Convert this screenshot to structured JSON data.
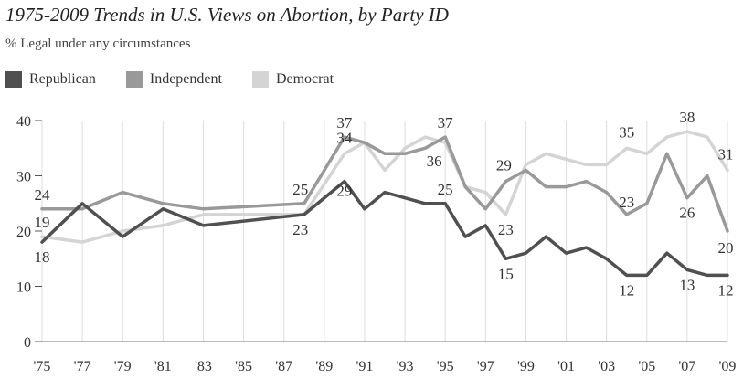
{
  "chart_data": {
    "type": "line",
    "title": "1975-2009 Trends in U.S. Views on Abortion, by Party ID",
    "subtitle": "% Legal under any circumstances",
    "ylim": [
      0,
      40
    ],
    "yticks": [
      0,
      10,
      20,
      30,
      40
    ],
    "grid": "vertical lines at each x tick",
    "legend_position": "top-left",
    "xticks": [
      1975,
      1977,
      1979,
      1981,
      1983,
      1985,
      1987,
      1989,
      1991,
      1993,
      1995,
      1997,
      1999,
      2001,
      2003,
      2005,
      2007,
      2009
    ],
    "xtick_labels": [
      "'75",
      "'77",
      "'79",
      "'81",
      "'83",
      "'85",
      "'87",
      "'89",
      "'91",
      "'93",
      "'95",
      "'97",
      "'99",
      "'01",
      "'03",
      "'05",
      "'07",
      "'09"
    ],
    "series": [
      {
        "name": "Republican",
        "color": "#505050",
        "points": [
          [
            1975,
            18
          ],
          [
            1977,
            25
          ],
          [
            1979,
            19
          ],
          [
            1981,
            24
          ],
          [
            1983,
            21
          ],
          [
            1988,
            23
          ],
          [
            1990,
            29
          ],
          [
            1991,
            24
          ],
          [
            1992,
            27
          ],
          [
            1994,
            25
          ],
          [
            1995,
            25
          ],
          [
            1996,
            19
          ],
          [
            1997,
            21
          ],
          [
            1998,
            15
          ],
          [
            1999,
            16
          ],
          [
            2000,
            19
          ],
          [
            2001,
            16
          ],
          [
            2002,
            17
          ],
          [
            2003,
            15
          ],
          [
            2004,
            12
          ],
          [
            2005,
            12
          ],
          [
            2006,
            16
          ],
          [
            2007,
            13
          ],
          [
            2008,
            12
          ],
          [
            2009,
            12
          ]
        ],
        "labels": [
          {
            "x": 1975,
            "y": 18,
            "text": "18"
          },
          {
            "x": 1990,
            "y": 29,
            "text": "29"
          },
          {
            "x": 1995,
            "y": 25,
            "text": "25"
          },
          {
            "x": 1998,
            "y": 15,
            "text": "15"
          },
          {
            "x": 2004,
            "y": 12,
            "text": "12"
          },
          {
            "x": 2007,
            "y": 13,
            "text": "13"
          },
          {
            "x": 2009,
            "y": 12,
            "text": "12"
          }
        ]
      },
      {
        "name": "Independent",
        "color": "#999999",
        "points": [
          [
            1975,
            24
          ],
          [
            1977,
            24
          ],
          [
            1979,
            27
          ],
          [
            1981,
            25
          ],
          [
            1983,
            24
          ],
          [
            1988,
            25
          ],
          [
            1990,
            37
          ],
          [
            1991,
            36
          ],
          [
            1992,
            34
          ],
          [
            1993,
            34
          ],
          [
            1994,
            35
          ],
          [
            1995,
            37
          ],
          [
            1996,
            28
          ],
          [
            1997,
            24
          ],
          [
            1998,
            29
          ],
          [
            1999,
            31
          ],
          [
            2000,
            28
          ],
          [
            2001,
            28
          ],
          [
            2002,
            29
          ],
          [
            2003,
            27
          ],
          [
            2004,
            23
          ],
          [
            2005,
            25
          ],
          [
            2006,
            34
          ],
          [
            2007,
            26
          ],
          [
            2008,
            30
          ],
          [
            2009,
            20
          ]
        ],
        "labels": [
          {
            "x": 1975,
            "y": 24,
            "text": "24"
          },
          {
            "x": 1988,
            "y": 25,
            "text": "25"
          },
          {
            "x": 1990,
            "y": 37,
            "text": "37"
          },
          {
            "x": 1995,
            "y": 37,
            "text": "37"
          },
          {
            "x": 1998,
            "y": 29,
            "text": "29"
          },
          {
            "x": 2004,
            "y": 23,
            "text": "23"
          },
          {
            "x": 2007,
            "y": 26,
            "text": "26"
          },
          {
            "x": 2009,
            "y": 20,
            "text": "20"
          }
        ]
      },
      {
        "name": "Democrat",
        "color": "#d4d4d4",
        "points": [
          [
            1975,
            19
          ],
          [
            1977,
            18
          ],
          [
            1979,
            20
          ],
          [
            1981,
            21
          ],
          [
            1983,
            23
          ],
          [
            1988,
            23
          ],
          [
            1990,
            34
          ],
          [
            1991,
            36
          ],
          [
            1992,
            31
          ],
          [
            1993,
            35
          ],
          [
            1994,
            37
          ],
          [
            1995,
            36
          ],
          [
            1996,
            28
          ],
          [
            1997,
            27
          ],
          [
            1998,
            23
          ],
          [
            1999,
            32
          ],
          [
            2000,
            34
          ],
          [
            2001,
            33
          ],
          [
            2002,
            32
          ],
          [
            2003,
            32
          ],
          [
            2004,
            35
          ],
          [
            2005,
            34
          ],
          [
            2006,
            37
          ],
          [
            2007,
            38
          ],
          [
            2008,
            37
          ],
          [
            2009,
            31
          ]
        ],
        "labels": [
          {
            "x": 1975,
            "y": 19,
            "text": "19"
          },
          {
            "x": 1988,
            "y": 23,
            "text": "23"
          },
          {
            "x": 1990,
            "y": 34,
            "text": "34"
          },
          {
            "x": 1995,
            "y": 36,
            "text": "36"
          },
          {
            "x": 1998,
            "y": 23,
            "text": "23"
          },
          {
            "x": 2004,
            "y": 35,
            "text": "35"
          },
          {
            "x": 2007,
            "y": 38,
            "text": "38"
          },
          {
            "x": 2009,
            "y": 31,
            "text": "31"
          }
        ]
      }
    ]
  }
}
